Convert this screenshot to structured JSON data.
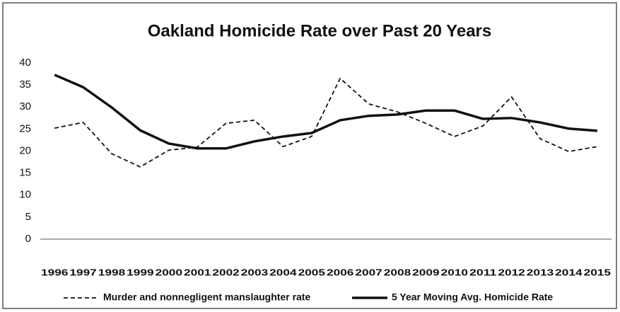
{
  "chart_data": {
    "type": "line",
    "title": "Oakland Homicide Rate over Past 20 Years",
    "categories": [
      "1996",
      "1997",
      "1998",
      "1999",
      "2000",
      "2001",
      "2002",
      "2003",
      "2004",
      "2005",
      "2006",
      "2007",
      "2008",
      "2009",
      "2010",
      "2011",
      "2012",
      "2013",
      "2014",
      "2015"
    ],
    "series": [
      {
        "name": "Murder and nonnegligent manslaughter rate",
        "color": "#111111",
        "dashed": true,
        "values": [
          25.2,
          26.5,
          19.4,
          16.4,
          20.2,
          20.9,
          26.3,
          27.0,
          21.0,
          23.3,
          36.5,
          30.7,
          28.9,
          26.3,
          23.3,
          25.7,
          32.3,
          22.8,
          19.9,
          21.0
        ]
      },
      {
        "name": "5 Year Moving Avg. Homicide Rate",
        "color": "#111111",
        "dashed": false,
        "values": [
          37.3,
          34.5,
          29.9,
          24.7,
          21.7,
          20.6,
          20.6,
          22.2,
          23.3,
          24.1,
          27.0,
          28.0,
          28.3,
          29.2,
          29.2,
          27.3,
          27.5,
          26.5,
          25.1,
          24.6
        ]
      }
    ],
    "ylim": [
      0,
      40
    ],
    "yticks": [
      0,
      5,
      10,
      15,
      20,
      25,
      30,
      35,
      40
    ],
    "grid": false,
    "legend": "bottom"
  }
}
